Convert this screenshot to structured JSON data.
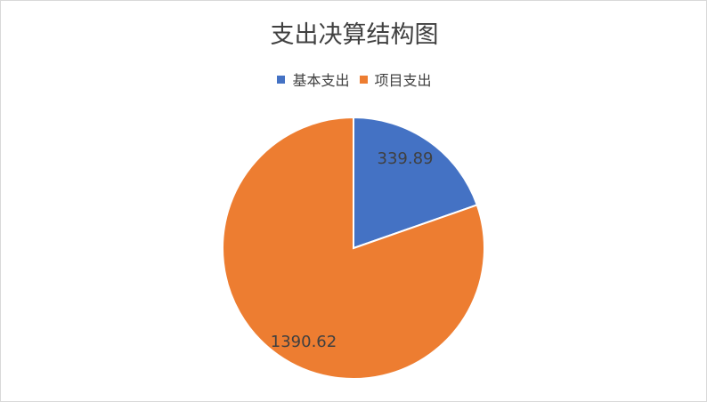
{
  "chart_data": {
    "type": "pie",
    "title": "支出决算结构图",
    "categories": [
      "基本支出",
      "项目支出"
    ],
    "values": [
      339.89,
      1390.62
    ],
    "colors": [
      "#4472C4",
      "#ED7D31"
    ],
    "data_labels": [
      "339.89",
      "1390.62"
    ],
    "legend_position": "top",
    "start_angle": "12 o'clock",
    "direction": "clockwise"
  }
}
